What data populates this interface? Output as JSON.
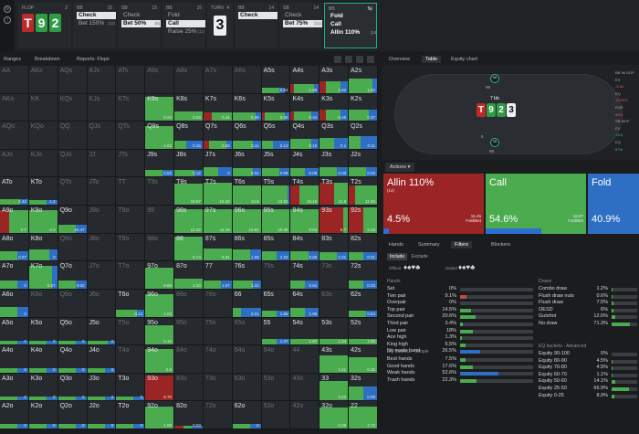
{
  "strip": {
    "nodes": [
      {
        "header": "FLOP",
        "count": "2",
        "board": true
      },
      {
        "header": "BB",
        "count": "15",
        "actions": [
          {
            "label": "Check",
            "sel": true
          },
          {
            "label": "Bet 150%",
            "size": "(33)"
          }
        ]
      },
      {
        "header": "SB",
        "count": "15",
        "actions": [
          {
            "label": "Check"
          },
          {
            "label": "Bet 50%",
            "size": "(5)",
            "sel": true
          }
        ]
      },
      {
        "header": "BB",
        "count": "15",
        "actions": [
          {
            "label": "Fold"
          },
          {
            "label": "Call",
            "sel": true
          },
          {
            "label": "Raise 25%",
            "size": "(11)"
          }
        ]
      },
      {
        "header": "TURN",
        "count": "4",
        "turn": "3"
      },
      {
        "header": "BB",
        "count": "14",
        "actions": [
          {
            "label": "Check",
            "sel": true
          }
        ]
      },
      {
        "header": "SB",
        "count": "14",
        "actions": [
          {
            "label": "Check"
          },
          {
            "label": "Bet 75%",
            "size": "(11)",
            "sel": true
          }
        ]
      },
      {
        "header": "BB",
        "count": "14",
        "last": true,
        "actions": [
          {
            "label": "Fold"
          },
          {
            "label": "Call"
          },
          {
            "label": "Allin 110%",
            "size": "(14)"
          }
        ]
      }
    ],
    "board": [
      "T",
      "9",
      "2"
    ],
    "turn_card": "3"
  },
  "grid_toolbar": {
    "ranges": "Ranges",
    "breakdown": "Breakdown",
    "reports": "Reports: Flops"
  },
  "colors": {
    "allin": "#9b2424",
    "call": "#4aab4f",
    "fold": "#2e6fc4",
    "raise": "#b22a2a"
  },
  "hands": [
    [
      "AA",
      "AKs",
      "AQs",
      "AJs",
      "ATs",
      "A9s",
      "A8s",
      "A7s",
      "A6s",
      "A5s",
      "A4s",
      "A3s",
      "A2s"
    ],
    [
      "AKo",
      "KK",
      "KQs",
      "KJs",
      "KTs",
      "K9s",
      "K8s",
      "K7s",
      "K6s",
      "K5s",
      "K4s",
      "K3s",
      "K2s"
    ],
    [
      "AQo",
      "KQo",
      "QQ",
      "QJs",
      "QTs",
      "Q9s",
      "Q8s",
      "Q7s",
      "Q6s",
      "Q5s",
      "Q4s",
      "Q3s",
      "Q2s"
    ],
    [
      "AJo",
      "KJo",
      "QJo",
      "JJ",
      "JTs",
      "J9s",
      "J8s",
      "J7s",
      "J6s",
      "J5s",
      "J4s",
      "J3s",
      "J2s"
    ],
    [
      "ATo",
      "KTo",
      "QTo",
      "JTo",
      "TT",
      "T9s",
      "T8s",
      "T7s",
      "T6s",
      "T5s",
      "T4s",
      "T3s",
      "T2s"
    ],
    [
      "A9o",
      "K9o",
      "Q9o",
      "J9o",
      "T9o",
      "99",
      "98s",
      "97s",
      "96s",
      "95s",
      "94s",
      "93s",
      "92s"
    ],
    [
      "A8o",
      "K8o",
      "Q8o",
      "J8o",
      "T8o",
      "98o",
      "88",
      "87s",
      "86s",
      "85s",
      "84s",
      "83s",
      "82s"
    ],
    [
      "A7o",
      "K7o",
      "Q7o",
      "J7o",
      "T7o",
      "97o",
      "87o",
      "77",
      "76s",
      "75s",
      "74s",
      "73s",
      "72s"
    ],
    [
      "A6o",
      "K6o",
      "Q6o",
      "J6o",
      "T6o",
      "96o",
      "86o",
      "76o",
      "66",
      "65s",
      "64s",
      "63s",
      "62s"
    ],
    [
      "A5o",
      "K5o",
      "Q5o",
      "J5o",
      "T5o",
      "95o",
      "85o",
      "75o",
      "65o",
      "55",
      "54s",
      "53s",
      "52s"
    ],
    [
      "A4o",
      "K4o",
      "Q4o",
      "J4o",
      "T4o",
      "94o",
      "84o",
      "74o",
      "64o",
      "54o",
      "44",
      "43s",
      "42s"
    ],
    [
      "A3o",
      "K3o",
      "Q3o",
      "J3o",
      "T3o",
      "93o",
      "83o",
      "73o",
      "63o",
      "53o",
      "43o",
      "33",
      "32s"
    ],
    [
      "A2o",
      "K2o",
      "Q2o",
      "J2o",
      "T2o",
      "92o",
      "82o",
      "72o",
      "62o",
      "52o",
      "42o",
      "32o",
      "22"
    ]
  ],
  "cells": [
    [
      0,
      9,
      0,
      0.6,
      0.2,
      0.2,
      "0.54"
    ],
    [
      0,
      10,
      0.1,
      0.7,
      0.2,
      0.3,
      "1.95"
    ],
    [
      0,
      11,
      0.2,
      0.5,
      0.3,
      0.4,
      "1.62"
    ],
    [
      0,
      12,
      0,
      0.8,
      0.2,
      0.5,
      "1.62"
    ],
    [
      1,
      5,
      0,
      1,
      0,
      0.85,
      "0.23"
    ],
    [
      1,
      6,
      0,
      1,
      0,
      0.35,
      "0.23"
    ],
    [
      1,
      7,
      0.3,
      0.7,
      0,
      0.3,
      "0.41"
    ],
    [
      1,
      8,
      0,
      0.8,
      0.2,
      0.3,
      "0.39"
    ],
    [
      1,
      9,
      0.1,
      0.7,
      0.2,
      0.3,
      "0.36"
    ],
    [
      1,
      10,
      0.1,
      0.6,
      0.3,
      0.35,
      "0.44"
    ],
    [
      1,
      11,
      0.2,
      0.5,
      0.3,
      0.4,
      "0.45"
    ],
    [
      1,
      12,
      0,
      0.7,
      0.3,
      0.4,
      "0.37"
    ],
    [
      2,
      5,
      0,
      1,
      0,
      0.8,
      "1.63"
    ],
    [
      2,
      6,
      0,
      0.4,
      0.6,
      0.3,
      "0.16"
    ],
    [
      2,
      7,
      0.2,
      0.6,
      0.2,
      0.3,
      "0.09"
    ],
    [
      2,
      8,
      0,
      0.7,
      0.3,
      0.3,
      "0.11"
    ],
    [
      2,
      9,
      0,
      0.4,
      0.6,
      0.3,
      "0.13"
    ],
    [
      2,
      10,
      0,
      0.7,
      0.3,
      0.35,
      "0.19"
    ],
    [
      2,
      11,
      0,
      0.5,
      0.5,
      0.4,
      "0.1"
    ],
    [
      2,
      12,
      0,
      0.4,
      0.6,
      0.45,
      "0.11"
    ],
    [
      3,
      5,
      0,
      0.6,
      0.4,
      0.25,
      "0.02"
    ],
    [
      3,
      6,
      0,
      0.7,
      0.3,
      0.25,
      "0.12"
    ],
    [
      3,
      7,
      0,
      0.5,
      0.5,
      0.35,
      "0"
    ],
    [
      3,
      8,
      0,
      0.7,
      0.3,
      0.3,
      "0.04"
    ],
    [
      3,
      9,
      0,
      0.6,
      0.4,
      0.3,
      "0.09"
    ],
    [
      3,
      10,
      0,
      0.5,
      0.5,
      0.3,
      "0.09"
    ],
    [
      3,
      11,
      0,
      0.6,
      0.4,
      0.35,
      "0.03"
    ],
    [
      3,
      12,
      0,
      0.6,
      0.4,
      0.35,
      "0.02"
    ],
    [
      4,
      0,
      0,
      0.7,
      0.3,
      0.2,
      "2.42"
    ],
    [
      4,
      1,
      0,
      0.6,
      0.4,
      0.15,
      "1.2"
    ],
    [
      4,
      6,
      0,
      1,
      0,
      0.75,
      "15.87"
    ],
    [
      4,
      7,
      0,
      1,
      0,
      0.8,
      "15.32"
    ],
    [
      4,
      8,
      0,
      1,
      0,
      0.7,
      "14.6"
    ],
    [
      4,
      9,
      0,
      0.9,
      0.1,
      0.7,
      "13.83"
    ],
    [
      4,
      10,
      0.3,
      0.7,
      0,
      0.7,
      "16.16"
    ],
    [
      4,
      11,
      0.5,
      0.5,
      0,
      0.8,
      "11.8"
    ],
    [
      4,
      12,
      0.2,
      0.8,
      0,
      0.7,
      "11.93"
    ],
    [
      5,
      0,
      0.3,
      0.7,
      0,
      0.8,
      "0.7"
    ],
    [
      5,
      1,
      0,
      1,
      0,
      0.8,
      "0.3"
    ],
    [
      5,
      2,
      0,
      0.6,
      0.4,
      0.3,
      "10.47"
    ],
    [
      5,
      6,
      0,
      1,
      0,
      0.85,
      "12.32"
    ],
    [
      5,
      7,
      0,
      1,
      0,
      0.85,
      "11.19"
    ],
    [
      5,
      8,
      0,
      1,
      0,
      0.85,
      "10.81"
    ],
    [
      5,
      9,
      0,
      1,
      0,
      0.85,
      "10.38"
    ],
    [
      5,
      10,
      0,
      1,
      0,
      0.85,
      "8.84"
    ],
    [
      5,
      11,
      0.8,
      0.2,
      0,
      0.9,
      "6.7"
    ],
    [
      5,
      12,
      0.5,
      0.5,
      0,
      0.9,
      "9.33"
    ],
    [
      6,
      0,
      0,
      0.6,
      0.4,
      0.35,
      "0.07"
    ],
    [
      6,
      1,
      0,
      0.7,
      0.3,
      0.4,
      "0"
    ],
    [
      6,
      6,
      0,
      1,
      0,
      0.85,
      "6.74"
    ],
    [
      6,
      7,
      0,
      1,
      0,
      0.45,
      "6.91"
    ],
    [
      6,
      8,
      0,
      0.6,
      0.4,
      0.4,
      "1.58"
    ],
    [
      6,
      9,
      0,
      0.5,
      0.5,
      0.35,
      "4.23"
    ],
    [
      6,
      10,
      0,
      0.6,
      0.4,
      0.35,
      "0.86"
    ],
    [
      6,
      11,
      0,
      0.6,
      0.4,
      0.3,
      "1.01"
    ],
    [
      6,
      12,
      0,
      0.5,
      0.5,
      0.3,
      "0.01"
    ],
    [
      7,
      0,
      0,
      0.6,
      0.4,
      0.3,
      "0"
    ],
    [
      7,
      1,
      0,
      0.8,
      0.2,
      0.8,
      "0.07"
    ],
    [
      7,
      2,
      0,
      0.6,
      0.4,
      0.3,
      "0.02"
    ],
    [
      7,
      5,
      0,
      1,
      0,
      0.75,
      "9.89"
    ],
    [
      7,
      6,
      0,
      1,
      0,
      0.35,
      "3.33"
    ],
    [
      7,
      7,
      0,
      0.6,
      0.4,
      0.3,
      "1.57"
    ],
    [
      7,
      8,
      0,
      0.7,
      0.3,
      0.3,
      "1.32"
    ],
    [
      7,
      10,
      0,
      0.5,
      0.5,
      0.3,
      "0.81"
    ],
    [
      7,
      12,
      0,
      0.5,
      0.5,
      0.3,
      "0.03"
    ],
    [
      8,
      0,
      0,
      0.6,
      0.4,
      0.35,
      "0"
    ],
    [
      8,
      4,
      0,
      0.7,
      0.3,
      0.25,
      "0.13"
    ],
    [
      8,
      5,
      0,
      1,
      0,
      0.8,
      "1.03"
    ],
    [
      8,
      8,
      0,
      0.3,
      0.7,
      0.3,
      "0.01"
    ],
    [
      8,
      9,
      0,
      0.5,
      0.5,
      0.2,
      "1.98"
    ],
    [
      8,
      10,
      0,
      0.5,
      0.5,
      0.3,
      "1.88"
    ],
    [
      8,
      12,
      0,
      0.6,
      0.4,
      0.2,
      "0.04"
    ],
    [
      9,
      0,
      0,
      0.6,
      0.4,
      0.15,
      "0"
    ],
    [
      9,
      1,
      0,
      0.6,
      0.4,
      0.15,
      "0"
    ],
    [
      9,
      2,
      0,
      0.6,
      0.4,
      0.15,
      "0"
    ],
    [
      9,
      3,
      0,
      0.7,
      0.3,
      0.15,
      "0"
    ],
    [
      9,
      5,
      0,
      1,
      0,
      0.7,
      "5.15"
    ],
    [
      9,
      9,
      0,
      0.5,
      0.5,
      0.2,
      "1.47"
    ],
    [
      9,
      10,
      0,
      1,
      0,
      0.2,
      "1.97"
    ],
    [
      9,
      11,
      0,
      1,
      0,
      0.2,
      "1.24"
    ],
    [
      9,
      12,
      0,
      1,
      0,
      0.2,
      "1.85"
    ],
    [
      10,
      0,
      0,
      0.6,
      0.4,
      0.15,
      "0"
    ],
    [
      10,
      1,
      0,
      0.6,
      0.4,
      0.15,
      "0"
    ],
    [
      10,
      2,
      0,
      0.6,
      0.4,
      0.15,
      "0"
    ],
    [
      10,
      3,
      0,
      0.6,
      0.4,
      0.15,
      "0"
    ],
    [
      10,
      5,
      0,
      1,
      0,
      0.85,
      "2.6"
    ],
    [
      10,
      11,
      0,
      1,
      0,
      0.6,
      "1.41"
    ],
    [
      10,
      12,
      0,
      1,
      0,
      0.55,
      "0.25"
    ],
    [
      11,
      0,
      0,
      0.6,
      0.4,
      0.15,
      "0"
    ],
    [
      11,
      1,
      0,
      0.6,
      0.4,
      0.15,
      "0"
    ],
    [
      11,
      2,
      0,
      0.6,
      0.4,
      0.15,
      "0"
    ],
    [
      11,
      3,
      0,
      0.6,
      0.4,
      0.15,
      "0"
    ],
    [
      11,
      4,
      0,
      0.6,
      0.4,
      0.15,
      "0"
    ],
    [
      11,
      5,
      1,
      0,
      0,
      0.9,
      "6.75"
    ],
    [
      11,
      11,
      0,
      1,
      0,
      0.7,
      "0.22"
    ],
    [
      11,
      12,
      0,
      0.5,
      0.5,
      0.5,
      "0.09"
    ],
    [
      12,
      0,
      0,
      0.6,
      0.4,
      0.15,
      "0"
    ],
    [
      12,
      1,
      0,
      0.6,
      0.4,
      0.15,
      "0"
    ],
    [
      12,
      2,
      0,
      0.6,
      0.4,
      0.15,
      "0"
    ],
    [
      12,
      3,
      0,
      0.6,
      0.4,
      0.15,
      "0"
    ],
    [
      12,
      4,
      0,
      0.6,
      0.4,
      0.15,
      "0"
    ],
    [
      12,
      5,
      0,
      1,
      0,
      0.8,
      "1.08"
    ],
    [
      12,
      6,
      0.3,
      0.3,
      0.4,
      0.1,
      "0.03"
    ],
    [
      12,
      8,
      0,
      0.6,
      0.4,
      0.15,
      "0"
    ],
    [
      12,
      11,
      0,
      1,
      0,
      0.75,
      "0.29"
    ],
    [
      12,
      12,
      0,
      1,
      0,
      0.8,
      "2.72"
    ]
  ],
  "right_tabs": {
    "overview": "Overview",
    "table": "Table",
    "equity": "Equity chart"
  },
  "table": {
    "pot": "7 bb",
    "board": [
      "T",
      "9",
      "2",
      "3"
    ],
    "sb": {
      "seat": "SB",
      "stack": "98",
      "note": "6"
    },
    "bb": {
      "seat": "BB",
      "stack": "98"
    },
    "side": [
      {
        "t": "BB 96 OOP",
        "c": ""
      },
      {
        "t": "EV",
        "c": ""
      },
      {
        "t": "-5.64",
        "c": "r"
      },
      {
        "t": "EQ",
        "c": ""
      },
      {
        "t": "12.95%",
        "c": "r"
      },
      {
        "t": "EQR",
        "c": ""
      },
      {
        "t": "84%",
        "c": "r"
      },
      {
        "t": "SB 98 IP",
        "c": ""
      },
      {
        "t": "EV",
        "c": ""
      },
      {
        "t": "+5.6",
        "c": "g"
      },
      {
        "t": "EQ",
        "c": ""
      },
      {
        "t": "87%",
        "c": "g"
      }
    ]
  },
  "actions": {
    "label": "Actions",
    "items": [
      {
        "name": "Allin 110%",
        "sub": "(14)",
        "pct": "4.5%",
        "ev": "15.45",
        "evl": "Fold/Bet",
        "color": "#9b2424",
        "bar": 0.05
      },
      {
        "name": "Call",
        "sub": "",
        "pct": "54.6%",
        "ev": "18.87",
        "evl": "Fold/Bet",
        "color": "#4aab4f",
        "bar": 0.55
      },
      {
        "name": "Fold",
        "sub": "",
        "pct": "40.9%",
        "ev": "",
        "evl": "",
        "color": "#2e6fc4",
        "bar": 0
      }
    ]
  },
  "filter_tabs": {
    "hands": "Hands",
    "summary": "Summary",
    "filters": "Filters",
    "blockers": "Blockers"
  },
  "include": "Include",
  "exclude": "Exclude",
  "offsuit": "Offsuit",
  "suited": "Suited",
  "hands_sec": "Hands",
  "hands_rows": [
    {
      "k": "Set",
      "v": "0%",
      "f": 0
    },
    {
      "k": "Two pair",
      "v": "9.1%",
      "f": 0.09
    },
    {
      "k": "Overpair",
      "v": "0%",
      "f": 0
    },
    {
      "k": "Top pair",
      "v": "14.5%",
      "f": 0.15
    },
    {
      "k": "Second pair",
      "v": "20.6%",
      "f": 0.21
    },
    {
      "k": "Third pair",
      "v": "3.4%",
      "f": 0.04
    },
    {
      "k": "Low pair",
      "v": "18%",
      "f": 0.18
    },
    {
      "k": "Ace high",
      "v": "1.3%",
      "f": 0.02
    },
    {
      "k": "King high",
      "v": "6.5%",
      "f": 0.07
    },
    {
      "k": "No made hand",
      "v": "26.5%",
      "f": 0.27
    }
  ],
  "eq_simple": "EQ buckets - Simple",
  "eq_simple_rows": [
    {
      "k": "Best hands",
      "v": "7.5%",
      "f": 0.08
    },
    {
      "k": "Good hands",
      "v": "17.6%",
      "f": 0.18
    },
    {
      "k": "Weak hands",
      "v": "52.6%",
      "f": 0.53
    },
    {
      "k": "Trash hands",
      "v": "22.3%",
      "f": 0.22
    }
  ],
  "draws_sec": "Draws",
  "draws_rows": [
    {
      "k": "Combo draw",
      "v": "1.2%",
      "f": 0.02
    },
    {
      "k": "Flush draw nuts",
      "v": "0.6%",
      "f": 0.01
    },
    {
      "k": "Flush draw",
      "v": "7.5%",
      "f": 0.08
    },
    {
      "k": "OESD",
      "v": "6%",
      "f": 0.06
    },
    {
      "k": "Gutshot",
      "v": "12.6%",
      "f": 0.13
    },
    {
      "k": "No draw",
      "v": "71.3%",
      "f": 0.71
    }
  ],
  "eq_adv": "EQ buckets - Advanced",
  "eq_adv_rows": [
    {
      "k": "Equity 90-100",
      "v": "0%",
      "f": 0
    },
    {
      "k": "Equity 80-90",
      "v": "4.5%",
      "f": 0.05
    },
    {
      "k": "Equity 70-80",
      "v": "4.5%",
      "f": 0.05
    },
    {
      "k": "Equity 60-70",
      "v": "1.1%",
      "f": 0.01
    },
    {
      "k": "Equity 50-60",
      "v": "14.1%",
      "f": 0.14
    },
    {
      "k": "Equity 25-50",
      "v": "66.9%",
      "f": 0.67
    },
    {
      "k": "Equity 0-25",
      "v": "8.9%",
      "f": 0.09
    }
  ]
}
